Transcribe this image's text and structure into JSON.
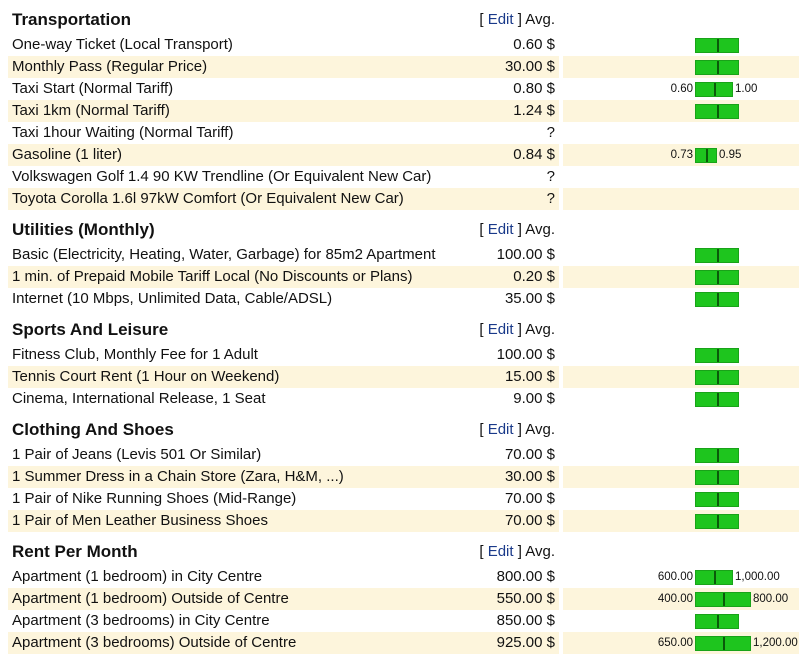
{
  "avg_label": "Avg.",
  "edit_label": "Edit",
  "bracket_open": "[",
  "bracket_close": "]",
  "colors": {
    "bar_fill": "#1ec51e",
    "bar_border": "#19a319",
    "row_alt_bg": "#fdf5dc",
    "link": "#1a3a8a"
  },
  "sections": [
    {
      "title": "Transportation",
      "rows": [
        {
          "name": "One-way Ticket (Local Transport)",
          "avg": "0.60 $",
          "bar": true
        },
        {
          "name": "Monthly Pass (Regular Price)",
          "avg": "30.00 $",
          "bar": true
        },
        {
          "name": "Taxi Start (Normal Tariff)",
          "avg": "0.80 $",
          "bar": true,
          "lo": "0.60",
          "hi": "1.00"
        },
        {
          "name": "Taxi 1km (Normal Tariff)",
          "avg": "1.24 $",
          "bar": true
        },
        {
          "name": "Taxi 1hour Waiting (Normal Tariff)",
          "avg": "?",
          "bar": false
        },
        {
          "name": "Gasoline (1 liter)",
          "avg": "0.84 $",
          "bar": true,
          "lo": "0.73",
          "hi": "0.95"
        },
        {
          "name": "Volkswagen Golf 1.4 90 KW Trendline (Or Equivalent New Car)",
          "avg": "?",
          "bar": false
        },
        {
          "name": "Toyota Corolla 1.6l 97kW Comfort (Or Equivalent New Car)",
          "avg": "?",
          "bar": false
        }
      ]
    },
    {
      "title": "Utilities (Monthly)",
      "rows": [
        {
          "name": "Basic (Electricity, Heating, Water, Garbage) for 85m2 Apartment",
          "avg": "100.00 $",
          "bar": true
        },
        {
          "name": "1 min. of Prepaid Mobile Tariff Local (No Discounts or Plans)",
          "avg": "0.20 $",
          "bar": true
        },
        {
          "name": "Internet (10 Mbps, Unlimited Data, Cable/ADSL)",
          "avg": "35.00 $",
          "bar": true
        }
      ]
    },
    {
      "title": "Sports And Leisure",
      "rows": [
        {
          "name": "Fitness Club, Monthly Fee for 1 Adult",
          "avg": "100.00 $",
          "bar": true
        },
        {
          "name": "Tennis Court Rent (1 Hour on Weekend)",
          "avg": "15.00 $",
          "bar": true
        },
        {
          "name": "Cinema, International Release, 1 Seat",
          "avg": "9.00 $",
          "bar": true
        }
      ]
    },
    {
      "title": "Clothing And Shoes",
      "rows": [
        {
          "name": "1 Pair of Jeans (Levis 501 Or Similar)",
          "avg": "70.00 $",
          "bar": true
        },
        {
          "name": "1 Summer Dress in a Chain Store (Zara, H&M, ...)",
          "avg": "30.00 $",
          "bar": true
        },
        {
          "name": "1 Pair of Nike Running Shoes (Mid-Range)",
          "avg": "70.00 $",
          "bar": true
        },
        {
          "name": "1 Pair of Men Leather Business Shoes",
          "avg": "70.00 $",
          "bar": true
        }
      ]
    },
    {
      "title": "Rent Per Month",
      "rows": [
        {
          "name": "Apartment (1 bedroom) in City Centre",
          "avg": "800.00 $",
          "bar": true,
          "lo": "600.00",
          "hi": "1,000.00"
        },
        {
          "name": "Apartment (1 bedroom) Outside of Centre",
          "avg": "550.00 $",
          "bar": true,
          "lo": "400.00",
          "hi": "800.00",
          "wide": true
        },
        {
          "name": "Apartment (3 bedrooms) in City Centre",
          "avg": "850.00 $",
          "bar": true
        },
        {
          "name": "Apartment (3 bedrooms) Outside of Centre",
          "avg": "925.00 $",
          "bar": true,
          "lo": "650.00",
          "hi": "1,200.00",
          "wide": true
        }
      ]
    }
  ]
}
